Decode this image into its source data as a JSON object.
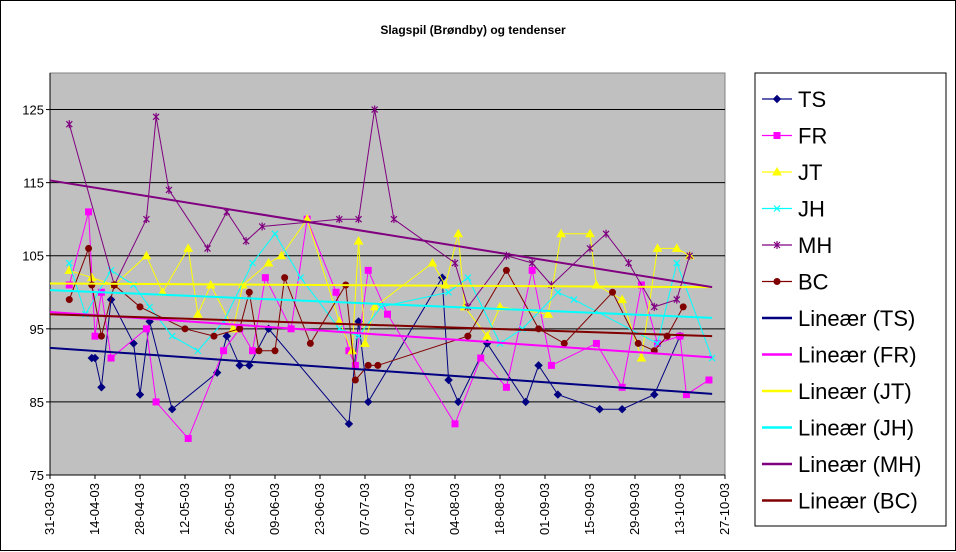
{
  "chart_data": {
    "type": "line",
    "title": "Slagspil (Brøndby) og tendenser",
    "xlabel": "",
    "ylabel": "",
    "x_range": [
      "2003-03-31",
      "2003-10-27"
    ],
    "x_ticks": [
      "31-03-03",
      "14-04-03",
      "28-04-03",
      "12-05-03",
      "26-05-03",
      "09-06-03",
      "23-06-03",
      "07-07-03",
      "21-07-03",
      "04-08-03",
      "18-08-03",
      "01-09-03",
      "15-09-03",
      "29-09-03",
      "13-10-03",
      "27-10-03"
    ],
    "ylim": [
      75,
      130
    ],
    "y_ticks": [
      75,
      85,
      95,
      105,
      115,
      125
    ],
    "grid": "horizontal",
    "plot_background": "#c0c0c0",
    "legend_position": "right",
    "series": [
      {
        "name": "TS",
        "color": "#000080",
        "marker": "diamond",
        "points": [
          [
            "2003-04-13",
            91
          ],
          [
            "2003-04-14",
            91
          ],
          [
            "2003-04-16",
            87
          ],
          [
            "2003-04-19",
            99
          ],
          [
            "2003-04-26",
            93
          ],
          [
            "2003-04-28",
            86
          ],
          [
            "2003-05-01",
            96
          ],
          [
            "2003-05-08",
            84
          ],
          [
            "2003-05-22",
            89
          ],
          [
            "2003-05-25",
            94
          ],
          [
            "2003-05-29",
            90
          ],
          [
            "2003-06-01",
            90
          ],
          [
            "2003-06-07",
            95
          ],
          [
            "2003-07-02",
            82
          ],
          [
            "2003-07-05",
            96
          ],
          [
            "2003-07-08",
            85
          ],
          [
            "2003-07-31",
            102
          ],
          [
            "2003-08-02",
            88
          ],
          [
            "2003-08-05",
            85
          ],
          [
            "2003-08-14",
            93
          ],
          [
            "2003-08-26",
            85
          ],
          [
            "2003-08-30",
            90
          ],
          [
            "2003-09-05",
            86
          ],
          [
            "2003-09-18",
            84
          ],
          [
            "2003-09-25",
            84
          ],
          [
            "2003-10-05",
            86
          ],
          [
            "2003-10-13",
            94
          ]
        ],
        "trend": [
          [
            "2003-03-31",
            92.4
          ],
          [
            "2003-10-23",
            86.1
          ]
        ]
      },
      {
        "name": "FR",
        "color": "#ff00ff",
        "marker": "square",
        "points": [
          [
            "2003-04-06",
            101
          ],
          [
            "2003-04-12",
            111
          ],
          [
            "2003-04-14",
            94
          ],
          [
            "2003-04-16",
            100
          ],
          [
            "2003-04-19",
            91
          ],
          [
            "2003-04-30",
            95
          ],
          [
            "2003-05-03",
            85
          ],
          [
            "2003-05-13",
            80
          ],
          [
            "2003-05-24",
            92
          ],
          [
            "2003-05-29",
            95
          ],
          [
            "2003-06-02",
            92
          ],
          [
            "2003-06-06",
            102
          ],
          [
            "2003-06-14",
            95
          ],
          [
            "2003-06-19",
            110
          ],
          [
            "2003-06-28",
            100
          ],
          [
            "2003-07-02",
            92
          ],
          [
            "2003-07-04",
            90
          ],
          [
            "2003-07-08",
            103
          ],
          [
            "2003-07-14",
            97
          ],
          [
            "2003-08-04",
            82
          ],
          [
            "2003-08-12",
            91
          ],
          [
            "2003-08-20",
            87
          ],
          [
            "2003-08-28",
            103
          ],
          [
            "2003-09-03",
            90
          ],
          [
            "2003-09-17",
            93
          ],
          [
            "2003-09-25",
            87
          ],
          [
            "2003-10-01",
            101
          ],
          [
            "2003-10-06",
            93
          ],
          [
            "2003-10-13",
            94
          ],
          [
            "2003-10-15",
            86
          ],
          [
            "2003-10-22",
            88
          ]
        ],
        "trend": [
          [
            "2003-03-31",
            97.3
          ],
          [
            "2003-10-23",
            91.1
          ]
        ]
      },
      {
        "name": "JT",
        "color": "#ffff00",
        "marker": "triangle",
        "points": [
          [
            "2003-04-06",
            103
          ],
          [
            "2003-04-13",
            102
          ],
          [
            "2003-04-20",
            101
          ],
          [
            "2003-04-30",
            105
          ],
          [
            "2003-05-05",
            100
          ],
          [
            "2003-05-13",
            106
          ],
          [
            "2003-05-16",
            97
          ],
          [
            "2003-05-20",
            101
          ],
          [
            "2003-05-27",
            95
          ],
          [
            "2003-05-30",
            101
          ],
          [
            "2003-06-07",
            104
          ],
          [
            "2003-06-11",
            105
          ],
          [
            "2003-06-19",
            110
          ],
          [
            "2003-06-29",
            96
          ],
          [
            "2003-07-03",
            92
          ],
          [
            "2003-07-05",
            107
          ],
          [
            "2003-07-07",
            93
          ],
          [
            "2003-07-10",
            98
          ],
          [
            "2003-07-28",
            104
          ],
          [
            "2003-08-01",
            101
          ],
          [
            "2003-08-05",
            108
          ],
          [
            "2003-08-07",
            98
          ],
          [
            "2003-08-14",
            94
          ],
          [
            "2003-08-18",
            98
          ],
          [
            "2003-09-02",
            97
          ],
          [
            "2003-09-06",
            108
          ],
          [
            "2003-09-15",
            108
          ],
          [
            "2003-09-17",
            101
          ],
          [
            "2003-09-25",
            99
          ],
          [
            "2003-10-01",
            91
          ],
          [
            "2003-10-06",
            106
          ],
          [
            "2003-10-12",
            106
          ],
          [
            "2003-10-16",
            105
          ]
        ],
        "trend": [
          [
            "2003-03-31",
            101.2
          ],
          [
            "2003-10-23",
            100.7
          ]
        ]
      },
      {
        "name": "JH",
        "color": "#00ffff",
        "marker": "x",
        "points": [
          [
            "2003-04-06",
            104
          ],
          [
            "2003-04-11",
            97
          ],
          [
            "2003-04-19",
            103
          ],
          [
            "2003-04-26",
            101
          ],
          [
            "2003-05-01",
            98
          ],
          [
            "2003-05-08",
            94
          ],
          [
            "2003-05-16",
            92
          ],
          [
            "2003-05-24",
            96
          ],
          [
            "2003-06-02",
            104
          ],
          [
            "2003-06-09",
            108
          ],
          [
            "2003-06-17",
            102
          ],
          [
            "2003-06-29",
            95
          ],
          [
            "2003-07-05",
            94
          ],
          [
            "2003-07-12",
            98
          ],
          [
            "2003-08-02",
            100
          ],
          [
            "2003-08-08",
            102
          ],
          [
            "2003-08-18",
            93
          ],
          [
            "2003-08-25",
            95
          ],
          [
            "2003-09-05",
            100
          ],
          [
            "2003-09-10",
            99
          ],
          [
            "2003-10-06",
            93
          ],
          [
            "2003-10-12",
            104
          ],
          [
            "2003-10-23",
            91
          ]
        ],
        "trend": [
          [
            "2003-03-31",
            100.3
          ],
          [
            "2003-10-23",
            96.5
          ]
        ]
      },
      {
        "name": "MH",
        "color": "#800080",
        "marker": "star",
        "points": [
          [
            "2003-04-06",
            123
          ],
          [
            "2003-04-20",
            101
          ],
          [
            "2003-04-30",
            110
          ],
          [
            "2003-05-03",
            124
          ],
          [
            "2003-05-07",
            114
          ],
          [
            "2003-05-19",
            106
          ],
          [
            "2003-05-25",
            111
          ],
          [
            "2003-05-31",
            107
          ],
          [
            "2003-06-05",
            109
          ],
          [
            "2003-06-29",
            110
          ],
          [
            "2003-07-05",
            110
          ],
          [
            "2003-07-10",
            125
          ],
          [
            "2003-07-16",
            110
          ],
          [
            "2003-08-04",
            104
          ],
          [
            "2003-08-08",
            98
          ],
          [
            "2003-08-20",
            105
          ],
          [
            "2003-08-28",
            104
          ],
          [
            "2003-09-03",
            101
          ],
          [
            "2003-09-15",
            106
          ],
          [
            "2003-09-20",
            108
          ],
          [
            "2003-09-27",
            104
          ],
          [
            "2003-10-05",
            98
          ],
          [
            "2003-10-12",
            99
          ],
          [
            "2003-10-16",
            105
          ]
        ],
        "trend": [
          [
            "2003-03-31",
            115.3
          ],
          [
            "2003-10-23",
            100.7
          ]
        ]
      },
      {
        "name": "BC",
        "color": "#800000",
        "marker": "circle",
        "points": [
          [
            "2003-04-06",
            99
          ],
          [
            "2003-04-12",
            106
          ],
          [
            "2003-04-13",
            101
          ],
          [
            "2003-04-16",
            94
          ],
          [
            "2003-04-20",
            101
          ],
          [
            "2003-04-28",
            98
          ],
          [
            "2003-05-12",
            95
          ],
          [
            "2003-05-21",
            94
          ],
          [
            "2003-05-29",
            95
          ],
          [
            "2003-06-01",
            100
          ],
          [
            "2003-06-04",
            92
          ],
          [
            "2003-06-09",
            92
          ],
          [
            "2003-06-12",
            102
          ],
          [
            "2003-06-20",
            93
          ],
          [
            "2003-07-01",
            101
          ],
          [
            "2003-07-04",
            88
          ],
          [
            "2003-07-08",
            90
          ],
          [
            "2003-07-11",
            90
          ],
          [
            "2003-08-08",
            94
          ],
          [
            "2003-08-20",
            103
          ],
          [
            "2003-08-30",
            95
          ],
          [
            "2003-09-07",
            93
          ],
          [
            "2003-09-22",
            100
          ],
          [
            "2003-09-30",
            93
          ],
          [
            "2003-10-05",
            92
          ],
          [
            "2003-10-09",
            94
          ],
          [
            "2003-10-14",
            98
          ]
        ],
        "trend": [
          [
            "2003-03-31",
            97.0
          ],
          [
            "2003-10-23",
            94.0
          ]
        ]
      }
    ],
    "legend": [
      "TS",
      "FR",
      "JT",
      "JH",
      "MH",
      "BC",
      "Lineær (TS)",
      "Lineær (FR)",
      "Lineær (JT)",
      "Lineær (JH)",
      "Lineær (MH)",
      "Lineær (BC)"
    ]
  }
}
